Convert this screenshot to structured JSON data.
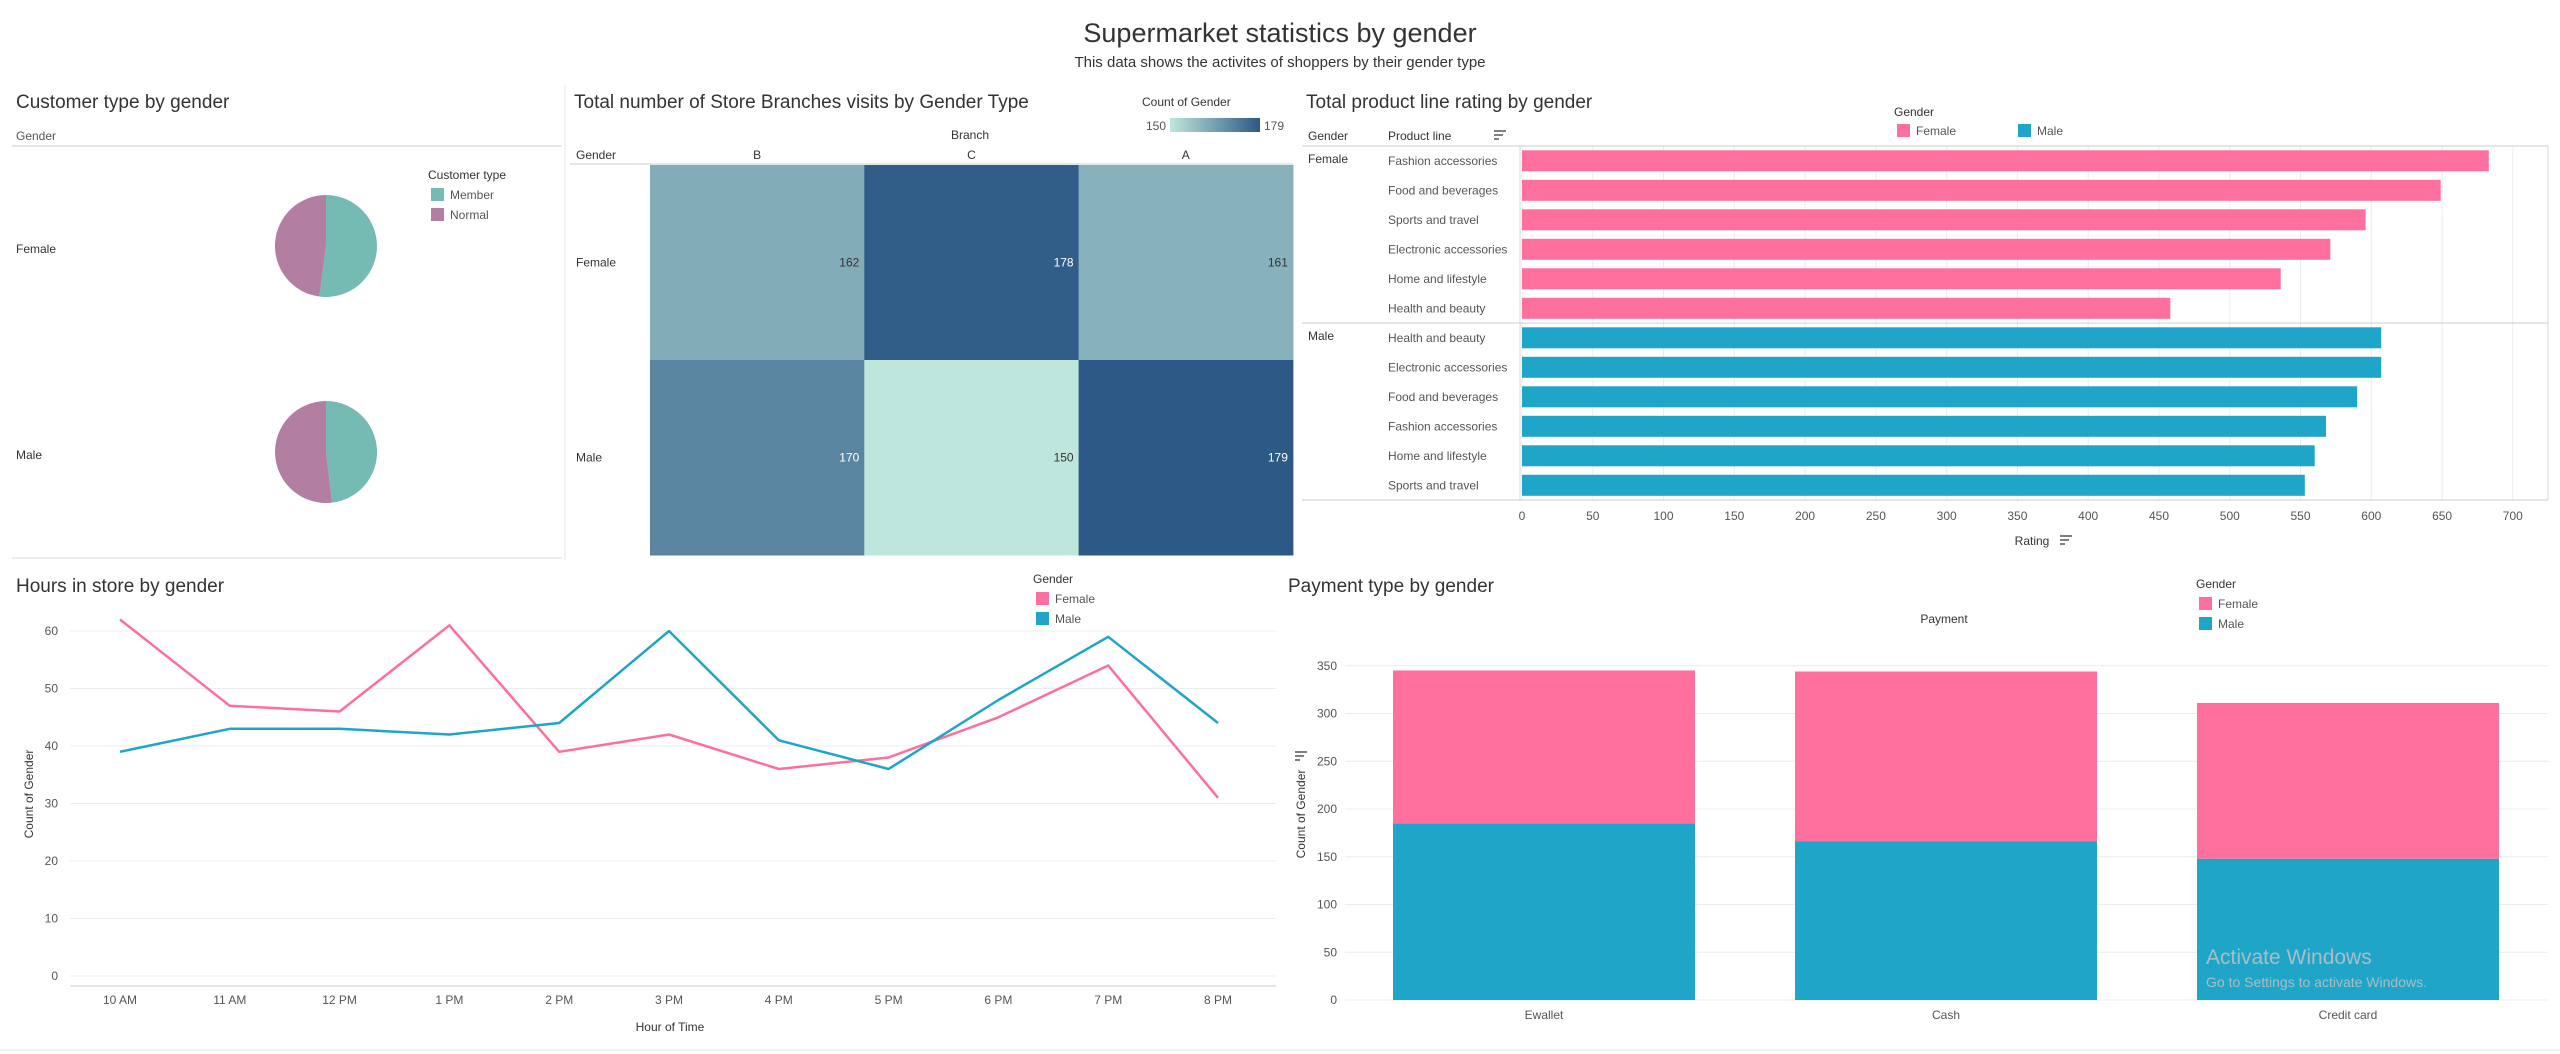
{
  "header": {
    "title": "Supermarket statistics by gender",
    "subtitle": "This data shows the activites of shoppers by their gender type"
  },
  "colors": {
    "female": "#fd6f9d",
    "male": "#1ea5c8",
    "member": "#76bab4",
    "normal": "#b27fa2",
    "heat_low": "#bfe6dc",
    "heat_high": "#2c5985",
    "grid": "#ececec",
    "text": "#333333",
    "label": "#555555"
  },
  "customer_panel": {
    "title": "Customer type by gender",
    "row_header": "Gender",
    "legend_title": "Customer type"
  },
  "branch_panel": {
    "title": "Total number of Store Branches visits by Gender Type",
    "row_header": "Gender",
    "col_header": "Branch",
    "legend_title": "Count of Gender",
    "legend_min": "150",
    "legend_max": "179"
  },
  "rating_panel": {
    "title": "Total product line rating by gender",
    "col_gender": "Gender",
    "col_product": "Product line",
    "legend_title": "Gender",
    "axis_title": "Rating"
  },
  "hours_panel": {
    "title": "Hours in store by gender",
    "legend_title": "Gender",
    "xlabel": "Hour of Time",
    "ylabel": "Count of Gender"
  },
  "payment_panel": {
    "title": "Payment type by gender",
    "legend_title": "Gender",
    "top_label": "Payment",
    "ylabel": "Count of Gender"
  },
  "watermark": {
    "line1": "Activate Windows",
    "line2": "Go to Settings to activate Windows."
  },
  "chart_data": [
    {
      "id": "customer_type",
      "type": "pie",
      "title": "Customer type by gender",
      "legend": [
        "Member",
        "Normal"
      ],
      "rows": [
        {
          "gender": "Female",
          "values": [
            261,
            240
          ]
        },
        {
          "gender": "Male",
          "values": [
            240,
            259
          ]
        }
      ]
    },
    {
      "id": "branch_visits",
      "type": "heatmap",
      "title": "Total number of Store Branches visits by Gender Type",
      "xlabel": "Branch",
      "ylabel": "Gender",
      "x": [
        "B",
        "C",
        "A"
      ],
      "y": [
        "Female",
        "Male"
      ],
      "values": [
        [
          162,
          178,
          161
        ],
        [
          170,
          150,
          179
        ]
      ],
      "range": [
        150,
        179
      ]
    },
    {
      "id": "product_rating",
      "type": "bar",
      "orientation": "horizontal",
      "title": "Total product line rating by gender",
      "xlabel": "Rating",
      "xlim": [
        0,
        720
      ],
      "ticks": [
        0,
        50,
        100,
        150,
        200,
        250,
        300,
        350,
        400,
        450,
        500,
        550,
        600,
        650,
        700
      ],
      "groups": [
        {
          "gender": "Female",
          "categories": [
            "Fashion accessories",
            "Food and beverages",
            "Sports and travel",
            "Electronic accessories",
            "Home and lifestyle",
            "Health and beauty"
          ],
          "values": [
            683,
            649,
            596,
            571,
            536,
            458
          ]
        },
        {
          "gender": "Male",
          "categories": [
            "Health and beauty",
            "Electronic accessories",
            "Food and beverages",
            "Fashion accessories",
            "Home and lifestyle",
            "Sports and travel"
          ],
          "values": [
            607,
            607,
            590,
            568,
            560,
            553
          ]
        }
      ]
    },
    {
      "id": "hours_in_store",
      "type": "line",
      "title": "Hours in store by gender",
      "xlabel": "Hour of Time",
      "ylabel": "Count of Gender",
      "categories": [
        "10 AM",
        "11 AM",
        "12 PM",
        "1 PM",
        "2 PM",
        "3 PM",
        "4 PM",
        "5 PM",
        "6 PM",
        "7 PM",
        "8 PM"
      ],
      "ylim": [
        0,
        63
      ],
      "yticks": [
        0,
        10,
        20,
        30,
        40,
        50,
        60
      ],
      "grid": true,
      "series": [
        {
          "name": "Female",
          "values": [
            62,
            47,
            46,
            61,
            39,
            42,
            36,
            38,
            45,
            54,
            31
          ]
        },
        {
          "name": "Male",
          "values": [
            39,
            43,
            43,
            42,
            44,
            60,
            41,
            36,
            48,
            59,
            44
          ]
        }
      ]
    },
    {
      "id": "payment_type",
      "type": "bar",
      "stacked": true,
      "title": "Payment type by gender",
      "xlabel": "Payment",
      "ylabel": "Count of Gender",
      "categories": [
        "Ewallet",
        "Cash",
        "Credit card"
      ],
      "ylim": [
        0,
        355
      ],
      "yticks": [
        0,
        50,
        100,
        150,
        200,
        250,
        300,
        350
      ],
      "grid": true,
      "series": [
        {
          "name": "Male",
          "values": [
            185,
            166,
            148
          ]
        },
        {
          "name": "Female",
          "values": [
            160,
            178,
            163
          ]
        }
      ]
    }
  ]
}
